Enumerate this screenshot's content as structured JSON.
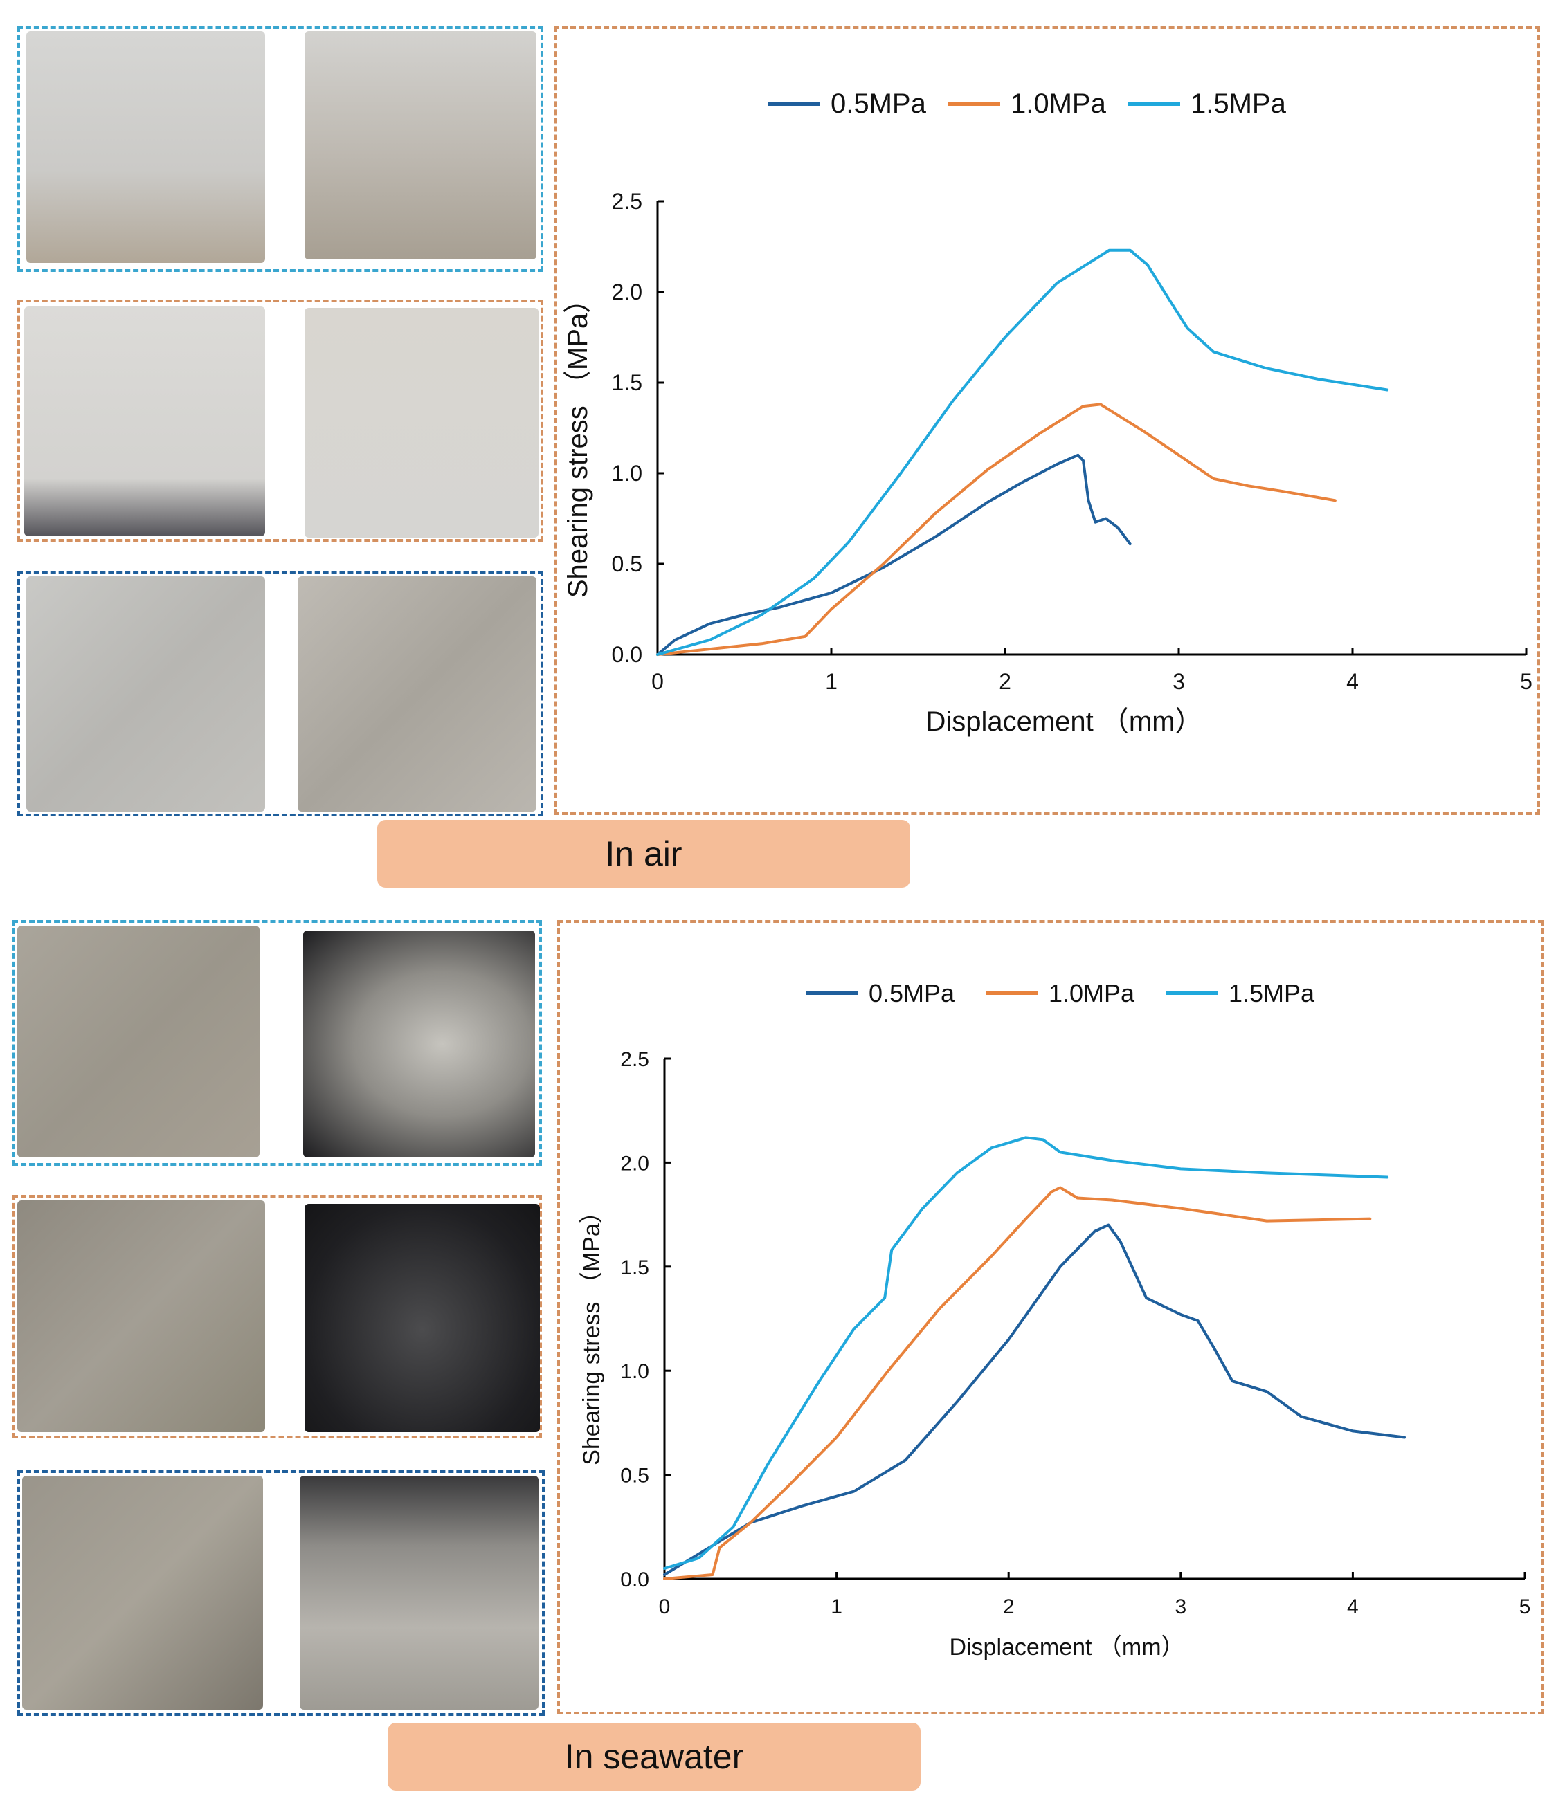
{
  "panels": [
    {
      "label": "In air",
      "chart_data": {
        "type": "line",
        "title": "",
        "xlabel": "Displacement （mm）",
        "ylabel": "Shearing stress （MPa）",
        "xlim": [
          0,
          5
        ],
        "ylim": [
          0,
          2.5
        ],
        "xticks": [
          "0",
          "1",
          "2",
          "3",
          "4",
          "5"
        ],
        "yticks": [
          "0.0",
          "0.5",
          "1.0",
          "1.5",
          "2.0",
          "2.5"
        ],
        "legend_position": "top",
        "series": [
          {
            "name": "0.5MPa",
            "color": "#1f5f9c",
            "points": [
              [
                0,
                0
              ],
              [
                0.1,
                0.08
              ],
              [
                0.3,
                0.17
              ],
              [
                0.5,
                0.22
              ],
              [
                0.7,
                0.26
              ],
              [
                1.0,
                0.34
              ],
              [
                1.3,
                0.48
              ],
              [
                1.6,
                0.65
              ],
              [
                1.9,
                0.84
              ],
              [
                2.1,
                0.95
              ],
              [
                2.3,
                1.05
              ],
              [
                2.42,
                1.1
              ],
              [
                2.45,
                1.07
              ],
              [
                2.48,
                0.85
              ],
              [
                2.52,
                0.73
              ],
              [
                2.58,
                0.75
              ],
              [
                2.65,
                0.7
              ],
              [
                2.72,
                0.61
              ]
            ]
          },
          {
            "name": "1.0MPa",
            "color": "#e8823c",
            "points": [
              [
                0,
                0
              ],
              [
                0.3,
                0.03
              ],
              [
                0.6,
                0.06
              ],
              [
                0.85,
                0.1
              ],
              [
                1.0,
                0.25
              ],
              [
                1.3,
                0.5
              ],
              [
                1.6,
                0.78
              ],
              [
                1.9,
                1.02
              ],
              [
                2.2,
                1.22
              ],
              [
                2.45,
                1.37
              ],
              [
                2.55,
                1.38
              ],
              [
                2.8,
                1.23
              ],
              [
                3.0,
                1.1
              ],
              [
                3.2,
                0.97
              ],
              [
                3.4,
                0.93
              ],
              [
                3.6,
                0.9
              ],
              [
                3.9,
                0.85
              ]
            ]
          },
          {
            "name": "1.5MPa",
            "color": "#20a8dc",
            "points": [
              [
                0,
                0
              ],
              [
                0.3,
                0.08
              ],
              [
                0.6,
                0.22
              ],
              [
                0.9,
                0.42
              ],
              [
                1.1,
                0.62
              ],
              [
                1.4,
                1.0
              ],
              [
                1.7,
                1.4
              ],
              [
                2.0,
                1.75
              ],
              [
                2.3,
                2.05
              ],
              [
                2.5,
                2.17
              ],
              [
                2.6,
                2.23
              ],
              [
                2.72,
                2.23
              ],
              [
                2.82,
                2.15
              ],
              [
                2.95,
                1.95
              ],
              [
                3.05,
                1.8
              ],
              [
                3.2,
                1.67
              ],
              [
                3.5,
                1.58
              ],
              [
                3.8,
                1.52
              ],
              [
                4.2,
                1.46
              ]
            ]
          }
        ]
      }
    },
    {
      "label": "In seawater",
      "chart_data": {
        "type": "line",
        "title": "",
        "xlabel": "Displacement （mm）",
        "ylabel": "Shearing stress （MPa）",
        "xlim": [
          0,
          5
        ],
        "ylim": [
          0,
          2.5
        ],
        "xticks": [
          "0",
          "1",
          "2",
          "3",
          "4",
          "5"
        ],
        "yticks": [
          "0.0",
          "0.5",
          "1.0",
          "1.5",
          "2.0",
          "2.5"
        ],
        "legend_position": "top",
        "series": [
          {
            "name": "0.5MPa",
            "color": "#1f5f9c",
            "points": [
              [
                0,
                0.02
              ],
              [
                0.2,
                0.12
              ],
              [
                0.5,
                0.27
              ],
              [
                0.8,
                0.35
              ],
              [
                1.1,
                0.42
              ],
              [
                1.4,
                0.57
              ],
              [
                1.7,
                0.85
              ],
              [
                2.0,
                1.15
              ],
              [
                2.3,
                1.5
              ],
              [
                2.5,
                1.67
              ],
              [
                2.58,
                1.7
              ],
              [
                2.65,
                1.62
              ],
              [
                2.8,
                1.35
              ],
              [
                3.0,
                1.27
              ],
              [
                3.1,
                1.24
              ],
              [
                3.2,
                1.1
              ],
              [
                3.3,
                0.95
              ],
              [
                3.5,
                0.9
              ],
              [
                3.7,
                0.78
              ],
              [
                4.0,
                0.71
              ],
              [
                4.3,
                0.68
              ]
            ]
          },
          {
            "name": "1.0MPa",
            "color": "#e8823c",
            "points": [
              [
                0,
                0
              ],
              [
                0.28,
                0.02
              ],
              [
                0.32,
                0.15
              ],
              [
                0.5,
                0.27
              ],
              [
                0.7,
                0.43
              ],
              [
                1.0,
                0.68
              ],
              [
                1.3,
                1.0
              ],
              [
                1.6,
                1.3
              ],
              [
                1.9,
                1.55
              ],
              [
                2.1,
                1.73
              ],
              [
                2.25,
                1.86
              ],
              [
                2.3,
                1.88
              ],
              [
                2.4,
                1.83
              ],
              [
                2.6,
                1.82
              ],
              [
                3.0,
                1.78
              ],
              [
                3.5,
                1.72
              ],
              [
                4.1,
                1.73
              ]
            ]
          },
          {
            "name": "1.5MPa",
            "color": "#20a8dc",
            "points": [
              [
                0,
                0.05
              ],
              [
                0.2,
                0.1
              ],
              [
                0.4,
                0.25
              ],
              [
                0.6,
                0.55
              ],
              [
                0.9,
                0.95
              ],
              [
                1.1,
                1.2
              ],
              [
                1.28,
                1.35
              ],
              [
                1.32,
                1.58
              ],
              [
                1.5,
                1.78
              ],
              [
                1.7,
                1.95
              ],
              [
                1.9,
                2.07
              ],
              [
                2.1,
                2.12
              ],
              [
                2.2,
                2.11
              ],
              [
                2.3,
                2.05
              ],
              [
                2.6,
                2.01
              ],
              [
                3.0,
                1.97
              ],
              [
                3.5,
                1.95
              ],
              [
                4.2,
                1.93
              ]
            ]
          }
        ]
      }
    }
  ]
}
